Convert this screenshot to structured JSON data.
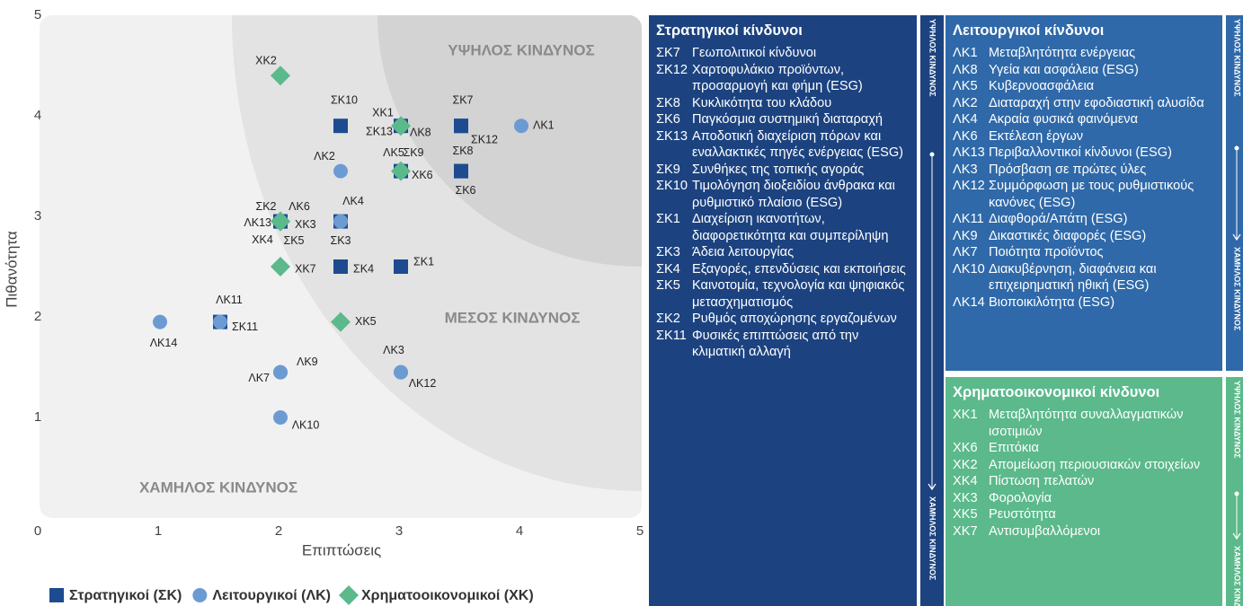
{
  "chart_data": {
    "type": "scatter",
    "x_label": "Επιπτώσεις",
    "y_label": "Πιθανότητα",
    "zone_labels": [
      "ΥΨΗΛΟΣ ΚΙΝΔΥΝΟΣ",
      "ΜΕΣΟΣ ΚΙΝΔΥΝΟΣ",
      "ΧΑΜΗΛΟΣ ΚΙΝΔΥΝΟΣ"
    ],
    "xlim": [
      0,
      5
    ],
    "ylim": [
      0,
      5
    ],
    "xticks": [
      0,
      1,
      2,
      3,
      4,
      5
    ],
    "yticks": [
      1,
      2,
      3,
      4,
      5
    ],
    "series": [
      {
        "name": "Στρατηγικοί (ΣΚ)",
        "color": "#1d4b8f",
        "marker": "square",
        "labels": [
          "ΣΚ10",
          "ΣΚ7",
          "ΣΚ12",
          "ΣΚ8",
          "ΣΚ6",
          "ΣΚ13",
          "ΣΚ9",
          "ΣΚ2",
          "ΣΚ5",
          "ΣΚ3",
          "ΣΚ4",
          "ΣΚ1",
          "ΣΚ11"
        ],
        "x": [
          2.5,
          3.5,
          3.5,
          3.5,
          3.5,
          3,
          3,
          2,
          2,
          2.5,
          2.5,
          3,
          1.5
        ],
        "values": [
          3.9,
          3.9,
          3.9,
          3.45,
          3.45,
          3.9,
          3.45,
          2.95,
          2.95,
          2.95,
          2.5,
          2.5,
          1.95
        ]
      },
      {
        "name": "Λειτουργικοί (ΛΚ)",
        "color": "#6c9bd3",
        "marker": "circle",
        "labels": [
          "ΛΚ1",
          "ΛΚ2",
          "ΛΚ8",
          "ΛΚ5",
          "ΛΚ4",
          "ΛΚ6",
          "ΛΚ13",
          "ΛΚ11",
          "ΛΚ14",
          "ΛΚ9",
          "ΛΚ7",
          "ΛΚ3",
          "ΛΚ12",
          "ΛΚ10"
        ],
        "x": [
          4,
          2.5,
          3,
          3,
          2.5,
          2,
          2,
          1.5,
          1,
          2,
          2,
          3,
          3,
          2
        ],
        "values": [
          3.9,
          3.45,
          3.9,
          3.45,
          2.95,
          2.95,
          2.95,
          1.95,
          1.95,
          1.45,
          1.45,
          1.45,
          1.45,
          1
        ]
      },
      {
        "name": "Χρηματοοικονομικοί (ΧΚ)",
        "color": "#5bb98b",
        "marker": "diamond",
        "labels": [
          "ΧΚ2",
          "ΧΚ1",
          "ΧΚ6",
          "ΧΚ3",
          "ΧΚ4",
          "ΧΚ7",
          "ΧΚ5"
        ],
        "x": [
          2,
          3,
          3,
          2,
          2,
          2,
          2.5
        ],
        "values": [
          4.4,
          3.9,
          3.45,
          2.95,
          2.95,
          2.5,
          1.95
        ]
      }
    ]
  },
  "panels": [
    {
      "title": "Στρατηγικοί κίνδυνοι",
      "items": [
        {
          "code": "ΣΚ7",
          "text": "Γεωπολιτικοί κίνδυνοι"
        },
        {
          "code": "ΣΚ12",
          "text": "Χαρτοφυλάκιο προϊόντων, προσαρμογή και φήμη (ESG)"
        },
        {
          "code": "ΣΚ8",
          "text": "Κυκλικότητα του κλάδου"
        },
        {
          "code": "ΣΚ6",
          "text": "Παγκόσμια συστημική διαταραχή"
        },
        {
          "code": "ΣΚ13",
          "text": "Αποδοτική διαχείριση πόρων και εναλλακτικές πηγές ενέργειας (ESG)"
        },
        {
          "code": "ΣΚ9",
          "text": "Συνθήκες της τοπικής αγοράς"
        },
        {
          "code": "ΣΚ10",
          "text": "Τιμολόγηση διοξειδίου άνθρακα και ρυθμιστικό πλαίσιο (ESG)"
        },
        {
          "code": "ΣΚ1",
          "text": "Διαχείριση ικανοτήτων, διαφορετικότητα και συμπερίληψη"
        },
        {
          "code": "ΣΚ3",
          "text": "Άδεια λειτουργίας"
        },
        {
          "code": "ΣΚ4",
          "text": "Εξαγορές, επενδύσεις και εκποιήσεις"
        },
        {
          "code": "ΣΚ5",
          "text": "Καινοτομία, τεχνολογία και ψηφιακός μετασχηματισμός"
        },
        {
          "code": "ΣΚ2",
          "text": "Ρυθμός αποχώρησης εργαζομένων"
        },
        {
          "code": "ΣΚ11",
          "text": "Φυσικές επιπτώσεις από την κλιματική αλλαγή"
        }
      ]
    },
    {
      "title": "Λειτουργικοί κίνδυνοι",
      "items": [
        {
          "code": "ΛΚ1",
          "text": "Μεταβλητότητα ενέργειας"
        },
        {
          "code": "ΛΚ8",
          "text": "Υγεία και ασφάλεια (ESG)"
        },
        {
          "code": "ΛΚ5",
          "text": "Κυβερνοασφάλεια"
        },
        {
          "code": "ΛΚ2",
          "text": "Διαταραχή στην εφοδιαστική αλυσίδα"
        },
        {
          "code": "ΛΚ4",
          "text": "Ακραία φυσικά φαινόμενα"
        },
        {
          "code": "ΛΚ6",
          "text": "Εκτέλεση έργων"
        },
        {
          "code": "ΛΚ13",
          "text": "Περιβαλλοντικοί κίνδυνοι (ESG)"
        },
        {
          "code": "ΛΚ3",
          "text": "Πρόσβαση σε πρώτες ύλες"
        },
        {
          "code": "ΛΚ12",
          "text": "Συμμόρφωση με τους ρυθμιστικούς κανόνες (ESG)"
        },
        {
          "code": "ΛΚ11",
          "text": "Διαφθορά/Απάτη (ESG)"
        },
        {
          "code": "ΛΚ9",
          "text": "Δικαστικές διαφορές (ESG)"
        },
        {
          "code": "ΛΚ7",
          "text": "Ποιότητα προϊόντος"
        },
        {
          "code": "ΛΚ10",
          "text": "Διακυβέρνηση, διαφάνεια και επιχειρηματική ηθική (ESG)"
        },
        {
          "code": "ΛΚ14",
          "text": "Βιοποικιλότητα (ESG)"
        }
      ]
    },
    {
      "title": "Χρηματοοικονομικοί κίνδυνοι",
      "items": [
        {
          "code": "ΧΚ1",
          "text": "Μεταβλητότητα συναλλαγματικών ισοτιμιών"
        },
        {
          "code": "ΧΚ6",
          "text": "Επιτόκια"
        },
        {
          "code": "ΧΚ2",
          "text": "Απομείωση περιουσιακών στοιχείων"
        },
        {
          "code": "ΧΚ4",
          "text": "Πίστωση πελατών"
        },
        {
          "code": "ΧΚ3",
          "text": "Φορολογία"
        },
        {
          "code": "ΧΚ5",
          "text": "Ρευστότητα"
        },
        {
          "code": "ΧΚ7",
          "text": "Αντισυμβαλλόμενοι"
        }
      ]
    }
  ],
  "strips": [
    {
      "top": "ΥΨΗΛΟΣ ΚΙΝΔΥΝΟΣ",
      "bottom": "ΧΑΜΗΛΟΣ ΚΙΝΔΥΝΟΣ"
    },
    {
      "top": "ΥΨΗΛΟΣ ΚΙΝΔΥΝΟΣ",
      "bottom": "ΧΑΜΗΛΟΣ ΚΙΝΔΥΝΟΣ"
    },
    {
      "top": "ΥΨΗΛΟΣ ΚΙΝΔΥΝΟΣ",
      "bottom": "ΧΑΜΗΛΟΣ ΚΙΝΔΥΝΟΣ"
    }
  ]
}
